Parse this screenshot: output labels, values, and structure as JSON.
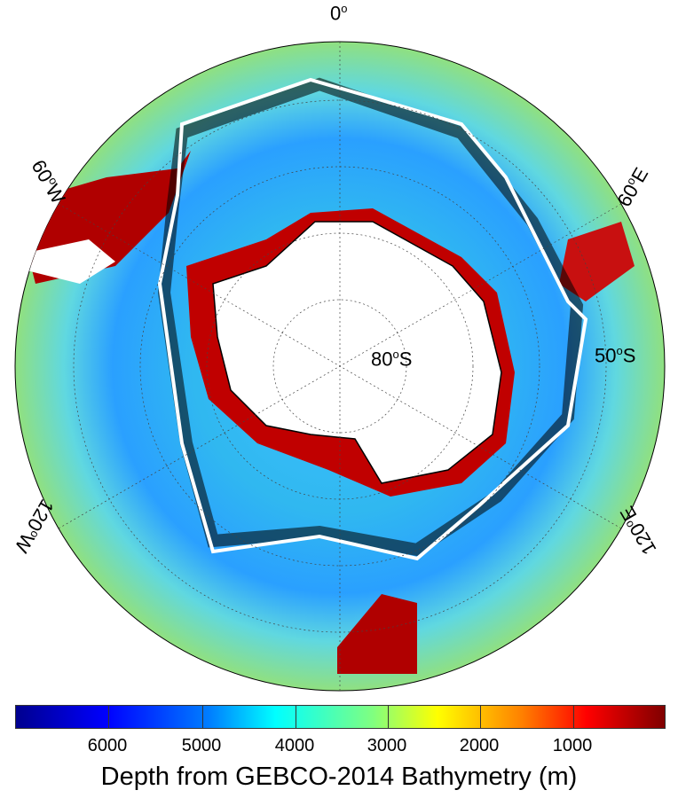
{
  "map": {
    "projection": "south polar stereographic",
    "longitude_labels": {
      "top": "0",
      "left_upper": "60",
      "left_upper_dir": "W",
      "right_upper": "60",
      "right_upper_dir": "E",
      "left_lower": "120",
      "left_lower_dir": "W",
      "right_lower": "120",
      "right_lower_dir": "E"
    },
    "latitude_labels": {
      "inner": "80",
      "inner_dir": "S",
      "outer": "50",
      "outer_dir": "S"
    },
    "degree_symbol": "o"
  },
  "colorbar": {
    "ticks": [
      "6000",
      "5000",
      "4000",
      "3000",
      "2000",
      "1000"
    ],
    "title": "Depth from GEBCO-2014 Bathymetry (m)",
    "colormap": "jet reversed (deep blue = deep, dark red = shallow)",
    "colors": {
      "deep": "#00008f",
      "mid": "#00ffff",
      "shallow": "#800000"
    }
  }
}
